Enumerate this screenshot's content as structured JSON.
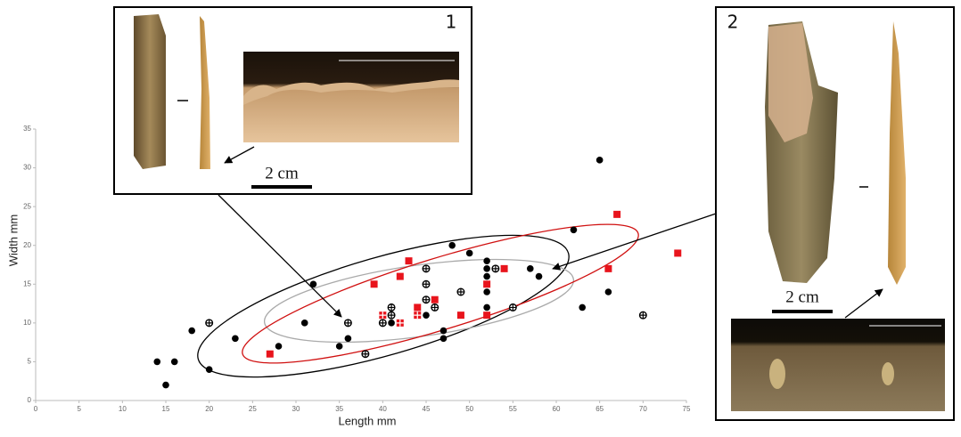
{
  "chart_data": {
    "type": "scatter",
    "xlabel": "Length mm",
    "ylabel": "Width mm",
    "xlim": [
      0,
      75
    ],
    "ylim": [
      0,
      35
    ],
    "xticks": [
      0,
      5,
      10,
      15,
      20,
      25,
      30,
      35,
      40,
      45,
      50,
      55,
      60,
      65,
      70,
      75
    ],
    "yticks": [
      0,
      5,
      10,
      15,
      20,
      25,
      30,
      35
    ],
    "series": [
      {
        "marker": "circle",
        "color": "#000000",
        "x": [
          14,
          15,
          16,
          18,
          20,
          23,
          28,
          31,
          32,
          35,
          36,
          41,
          45,
          47,
          47,
          48,
          50,
          52,
          52,
          52,
          52,
          52,
          57,
          58,
          62,
          63,
          65,
          66
        ],
        "values": [
          5,
          2,
          5,
          9,
          4,
          8,
          7,
          10,
          15,
          7,
          8,
          10,
          11,
          9,
          8,
          20,
          19,
          18,
          17,
          16,
          14,
          12,
          17,
          16,
          22,
          12,
          31,
          14
        ]
      },
      {
        "marker": "crossed-circle",
        "color": "#000000",
        "x": [
          20,
          36,
          38,
          40,
          41,
          41,
          45,
          45,
          45,
          46,
          49,
          53,
          55,
          70
        ],
        "values": [
          10,
          10,
          6,
          10,
          12,
          11,
          17,
          15,
          13,
          12,
          14,
          17,
          12,
          11
        ]
      },
      {
        "marker": "square",
        "color": "#e8141c",
        "x": [
          27,
          39,
          42,
          43,
          44,
          46,
          49,
          52,
          52,
          54,
          66,
          67,
          74
        ],
        "values": [
          6,
          15,
          16,
          18,
          12,
          13,
          11,
          15,
          11,
          17,
          17,
          24,
          19
        ]
      },
      {
        "marker": "crossed-square",
        "color": "#e8141c",
        "x": [
          40,
          42,
          44
        ],
        "values": [
          11,
          10,
          11
        ]
      }
    ]
  },
  "insets": [
    {
      "number": "1",
      "scale": "2 cm"
    },
    {
      "number": "2",
      "scale": "2 cm"
    }
  ]
}
